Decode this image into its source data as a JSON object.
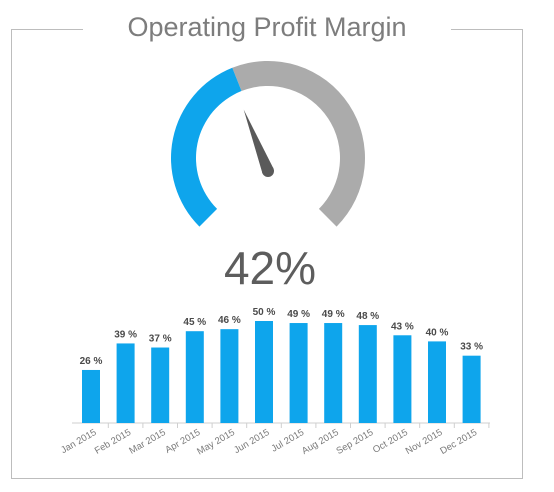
{
  "chart_data": [
    {
      "type": "gauge",
      "title": "Operating Profit Margin",
      "value": 42,
      "value_label": "42%",
      "min": 0,
      "max": 100,
      "colors": {
        "filled": "#0ea5ec",
        "remaining": "#ababab",
        "needle": "#5a5a5a"
      }
    },
    {
      "type": "bar",
      "categories": [
        "Jan 2015",
        "Feb 2015",
        "Mar 2015",
        "Apr 2015",
        "May 2015",
        "Jun 2015",
        "Jul 2015",
        "Aug 2015",
        "Sep 2015",
        "Oct 2015",
        "Nov 2015",
        "Dec 2015"
      ],
      "values": [
        26,
        39,
        37,
        45,
        46,
        50,
        49,
        49,
        48,
        43,
        40,
        33
      ],
      "data_labels": [
        "26 %",
        "39 %",
        "37 %",
        "45 %",
        "46 %",
        "50 %",
        "49 %",
        "49 %",
        "48 %",
        "43 %",
        "40 %",
        "33 %"
      ],
      "ylim": [
        0,
        50
      ],
      "color": "#0ea5ec",
      "grid": false
    }
  ]
}
